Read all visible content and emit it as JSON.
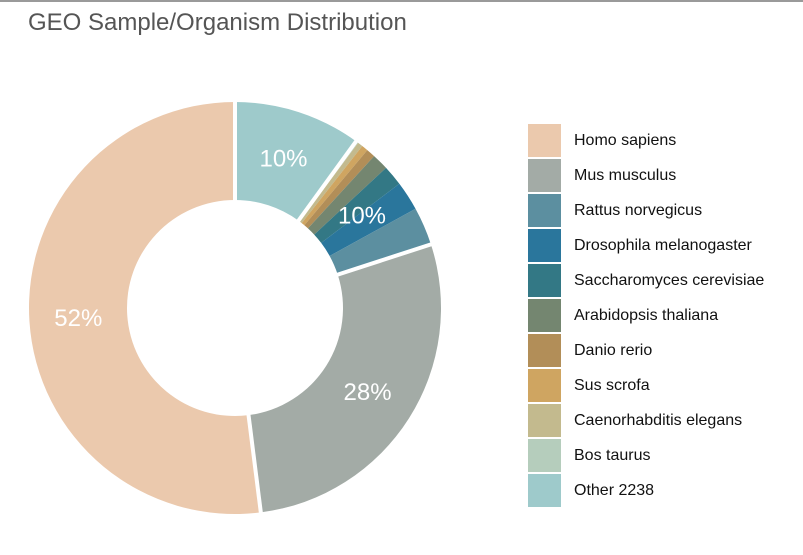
{
  "chart_data": {
    "type": "pie",
    "donut": true,
    "title": "GEO Sample/Organism Distribution",
    "legend_position": "right",
    "slices": [
      {
        "name": "Other 2238",
        "value": 10.0,
        "color": "#9ecacb",
        "group": 0
      },
      {
        "name": "Bos taurus",
        "value": 0.2,
        "color": "#b5cdbc",
        "group": 1
      },
      {
        "name": "Caenorhabditis elegans",
        "value": 0.4,
        "color": "#c3ba8e",
        "group": 1
      },
      {
        "name": "Sus scrofa",
        "value": 0.5,
        "color": "#cfa561",
        "group": 1
      },
      {
        "name": "Danio rerio",
        "value": 0.7,
        "color": "#b28e58",
        "group": 1
      },
      {
        "name": "Arabidopsis thaliana",
        "value": 1.3,
        "color": "#748670",
        "group": 1
      },
      {
        "name": "Saccharomyces cerevisiae",
        "value": 1.6,
        "color": "#337885",
        "group": 1
      },
      {
        "name": "Drosophila melanogaster",
        "value": 2.3,
        "color": "#2a769c",
        "group": 1
      },
      {
        "name": "Rattus norvegicus",
        "value": 3.0,
        "color": "#5c8fa0",
        "group": 1
      },
      {
        "name": "Mus musculus",
        "value": 28.0,
        "color": "#a3aba6",
        "group": 2
      },
      {
        "name": "Homo sapiens",
        "value": 52.0,
        "color": "#ebc9ad",
        "group": 3
      }
    ],
    "group_labels": [
      "10%",
      "10%",
      "28%",
      "52%"
    ],
    "legend": [
      {
        "label": "Homo sapiens",
        "color": "#ebc9ad"
      },
      {
        "label": "Mus musculus",
        "color": "#a3aba6"
      },
      {
        "label": "Rattus norvegicus",
        "color": "#5c8fa0"
      },
      {
        "label": "Drosophila melanogaster",
        "color": "#2a769c"
      },
      {
        "label": "Saccharomyces cerevisiae",
        "color": "#337885"
      },
      {
        "label": "Arabidopsis thaliana",
        "color": "#748670"
      },
      {
        "label": "Danio rerio",
        "color": "#b28e58"
      },
      {
        "label": "Sus scrofa",
        "color": "#cfa561"
      },
      {
        "label": "Caenorhabditis elegans",
        "color": "#c3ba8e"
      },
      {
        "label": "Bos taurus",
        "color": "#b5cdbc"
      },
      {
        "label": "Other 2238",
        "color": "#9ecacb"
      }
    ]
  }
}
